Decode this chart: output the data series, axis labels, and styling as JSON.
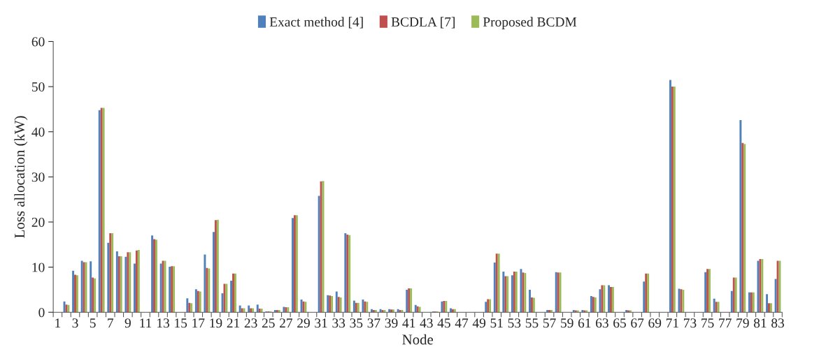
{
  "chart_data": {
    "type": "bar",
    "xlabel": "Node",
    "ylabel": "Loss allocation (kW)",
    "categories": [
      "1",
      null,
      "3",
      null,
      "5",
      null,
      "7",
      null,
      "9",
      null,
      "11",
      null,
      "13",
      null,
      "15",
      null,
      "17",
      null,
      "19",
      null,
      "21",
      null,
      "23",
      null,
      "25",
      null,
      "27",
      null,
      "29",
      null,
      "31",
      null,
      "33",
      null,
      "35",
      null,
      "37",
      null,
      "39",
      null,
      "41",
      null,
      "43",
      null,
      "45",
      null,
      "47",
      null,
      "49",
      null,
      "51",
      null,
      "53",
      null,
      "55",
      null,
      "57",
      null,
      "59",
      null,
      "61",
      null,
      "63",
      null,
      "65",
      null,
      "67",
      null,
      "69",
      null,
      "71",
      null,
      "73",
      null,
      "75",
      null,
      "77",
      null,
      "79",
      null,
      "81",
      null,
      "83"
    ],
    "series": [
      {
        "name": "Exact method [4]",
        "color": "#4f81bd",
        "values": [
          0,
          2.4,
          9.2,
          11.4,
          11.3,
          44.8,
          15.4,
          13.5,
          12.3,
          10.8,
          0,
          17.0,
          10.8,
          10.1,
          0,
          3.1,
          5.1,
          12.8,
          17.8,
          4.2,
          7.0,
          1.5,
          1.5,
          1.7,
          0.2,
          0.5,
          1.2,
          20.9,
          2.8,
          0,
          25.8,
          3.8,
          4.6,
          17.5,
          2.6,
          2.8,
          0.7,
          0.7,
          0.7,
          0.7,
          5.0,
          1.6,
          0,
          0.2,
          2.4,
          0.9,
          0,
          0,
          0,
          2.3,
          11.0,
          9.0,
          8.2,
          9.6,
          5.0,
          0,
          0.5,
          8.9,
          0,
          0.5,
          0.5,
          3.6,
          5.1,
          6.0,
          0,
          0.5,
          0,
          6.8,
          0,
          0,
          51.5,
          5.2,
          0,
          0,
          8.9,
          3.0,
          0,
          4.7,
          42.6,
          4.4,
          11.4,
          4.0,
          7.4
        ]
      },
      {
        "name": "BCDLA [7]",
        "color": "#c0504d",
        "values": [
          0,
          1.7,
          8.3,
          11.1,
          7.7,
          45.3,
          17.5,
          12.4,
          13.3,
          13.7,
          0,
          16.2,
          11.4,
          10.2,
          0,
          2.1,
          4.7,
          9.8,
          20.4,
          6.3,
          8.6,
          0.9,
          0.9,
          0.8,
          0.2,
          0.5,
          1.1,
          21.5,
          2.4,
          0,
          29.0,
          3.7,
          3.4,
          17.2,
          2.1,
          2.4,
          0.5,
          0.5,
          0.6,
          0.5,
          5.3,
          1.3,
          0,
          0.2,
          2.5,
          0.7,
          0,
          0,
          0,
          2.9,
          13.0,
          8.0,
          9.0,
          8.8,
          3.3,
          0,
          0.5,
          8.8,
          0,
          0.4,
          0.4,
          3.4,
          6.0,
          5.6,
          0,
          0.4,
          0,
          8.6,
          0,
          0,
          50.0,
          5.1,
          0,
          0,
          9.6,
          2.3,
          0,
          7.7,
          37.5,
          4.4,
          11.8,
          2.0,
          11.4
        ]
      },
      {
        "name": "Proposed BCDM",
        "color": "#9bbb59",
        "values": [
          0,
          1.6,
          8.2,
          11.1,
          7.5,
          45.3,
          17.5,
          12.4,
          13.3,
          13.8,
          0,
          16.1,
          11.4,
          10.2,
          0,
          2.0,
          4.6,
          9.7,
          20.5,
          6.3,
          8.6,
          0.9,
          0.9,
          0.8,
          0.2,
          0.5,
          1.1,
          21.5,
          2.3,
          0,
          29.1,
          3.6,
          3.3,
          17.1,
          2.1,
          2.3,
          0.5,
          0.5,
          0.6,
          0.5,
          5.3,
          1.2,
          0,
          0.2,
          2.5,
          0.7,
          0,
          0,
          0,
          2.9,
          13.0,
          8.0,
          9.0,
          8.7,
          3.2,
          0,
          0.5,
          8.8,
          0,
          0.4,
          0.4,
          3.3,
          6.0,
          5.6,
          0,
          0.4,
          0,
          8.6,
          0,
          0,
          50.0,
          5.0,
          0,
          0,
          9.6,
          2.3,
          0,
          7.7,
          37.3,
          4.4,
          11.8,
          2.0,
          11.4
        ]
      }
    ],
    "ylim": [
      0,
      60
    ],
    "yticks": [
      0,
      10,
      20,
      30,
      40,
      50,
      60
    ],
    "grid": false,
    "legend": "top"
  }
}
